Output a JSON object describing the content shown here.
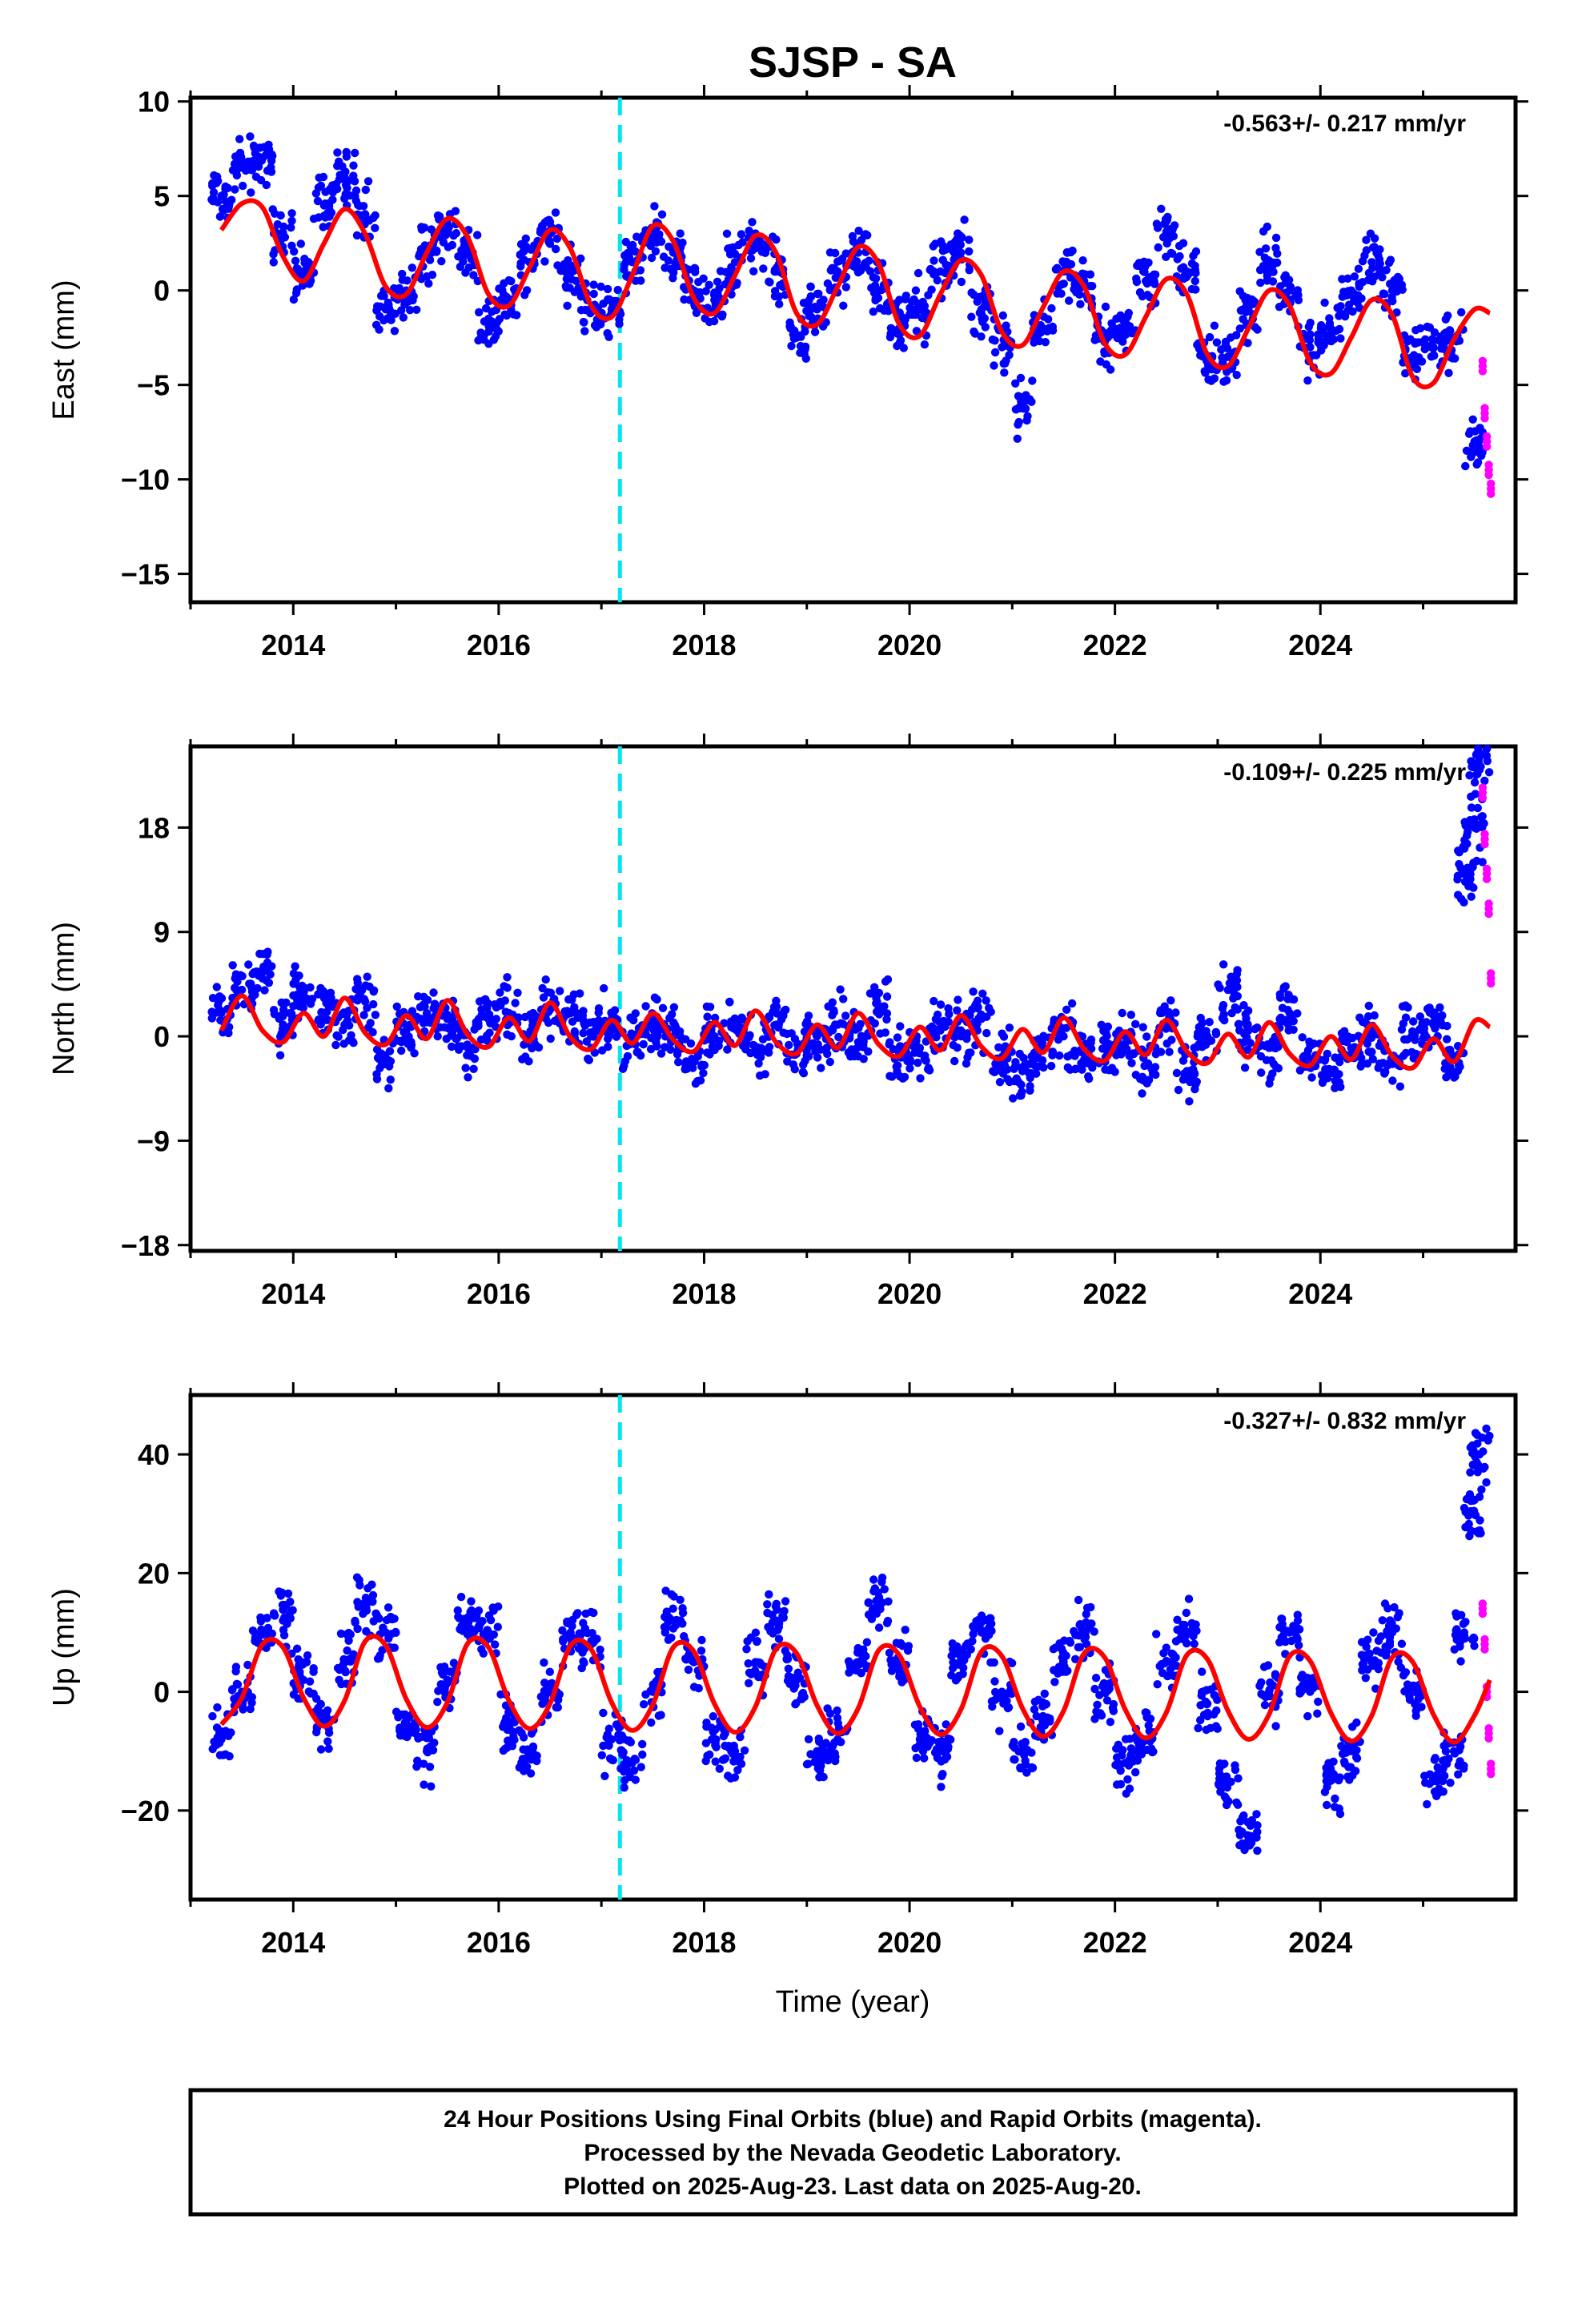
{
  "title": "SJSP - SA",
  "xlabel": "Time (year)",
  "footer": {
    "lines": [
      "24 Hour Positions Using Final Orbits (blue) and Rapid Orbits (magenta).",
      "Processed by the Nevada Geodetic Laboratory.",
      "Plotted on 2025-Aug-23. Last data on 2025-Aug-20."
    ]
  },
  "colors": {
    "final_orbits": "#0000ff",
    "rapid_orbits": "#ff00ff",
    "model_fit": "#ff0000",
    "event_line": "#00e5ee",
    "frame": "#000000"
  },
  "chart_data": [
    {
      "type": "scatter",
      "name": "east",
      "ylabel": "East (mm)",
      "rate_label": "-0.563+/- 0.217 mm/yr",
      "xlim": [
        2013.0,
        2025.9
      ],
      "ylim": [
        -16.5,
        10.2
      ],
      "xticks": [
        2014,
        2016,
        2018,
        2020,
        2022,
        2024
      ],
      "yticks": [
        10,
        5,
        0,
        -5,
        -10,
        -15
      ],
      "ytick_labels": [
        "10",
        "5",
        "0",
        "−5",
        "−10",
        "−15"
      ],
      "event_line_x": 2017.18,
      "grid": false,
      "series": [
        {
          "name": "final",
          "x": [
            2013.3,
            2013.5,
            2013.7,
            2013.9,
            2014.1,
            2014.3,
            2014.5,
            2014.7,
            2014.9,
            2015.1,
            2015.3,
            2015.5,
            2015.7,
            2015.9,
            2016.1,
            2016.3,
            2016.5,
            2016.7,
            2016.9,
            2017.1,
            2017.3,
            2017.5,
            2017.7,
            2017.9,
            2018.1,
            2018.3,
            2018.5,
            2018.7,
            2018.9,
            2019.1,
            2019.3,
            2019.5,
            2019.7,
            2019.9,
            2020.1,
            2020.3,
            2020.5,
            2020.7,
            2020.9,
            2021.1,
            2021.3,
            2021.5,
            2021.7,
            2021.9,
            2022.1,
            2022.3,
            2022.5,
            2022.7,
            2022.9,
            2023.1,
            2023.3,
            2023.5,
            2023.7,
            2023.9,
            2024.1,
            2024.3,
            2024.5,
            2024.7,
            2024.9,
            2025.1,
            2025.3,
            2025.5
          ],
          "y": [
            5.0,
            6.5,
            7.0,
            3.0,
            1.0,
            4.5,
            6.0,
            4.0,
            -1.0,
            0.0,
            2.0,
            3.5,
            2.0,
            -1.5,
            -0.5,
            1.5,
            3.0,
            1.0,
            -1.0,
            -1.0,
            1.5,
            3.0,
            2.0,
            0.0,
            -0.5,
            1.5,
            2.5,
            1.0,
            -2.5,
            -1.0,
            1.0,
            2.0,
            0.0,
            -2.0,
            -1.0,
            1.0,
            2.0,
            -1.0,
            -3.0,
            -6.0,
            -2.0,
            1.0,
            0.5,
            -2.5,
            -2.0,
            0.5,
            3.0,
            1.0,
            -3.5,
            -3.5,
            -1.0,
            1.5,
            0.0,
            -3.0,
            -2.0,
            0.0,
            1.5,
            0.0,
            -3.5,
            -3.0,
            -2.5,
            -8.0
          ]
        },
        {
          "name": "rapid",
          "x": [
            2025.58,
            2025.6,
            2025.62,
            2025.64,
            2025.66
          ],
          "y": [
            -4.0,
            -6.5,
            -8.0,
            -9.5,
            -10.5
          ]
        },
        {
          "name": "fit",
          "x": [
            2013.3,
            2013.5,
            2013.7,
            2013.9,
            2014.1,
            2014.3,
            2014.5,
            2014.7,
            2014.9,
            2015.1,
            2015.3,
            2015.5,
            2015.7,
            2015.9,
            2016.1,
            2016.3,
            2016.5,
            2016.7,
            2016.9,
            2017.1,
            2017.3,
            2017.5,
            2017.7,
            2017.9,
            2018.1,
            2018.3,
            2018.5,
            2018.7,
            2018.9,
            2019.1,
            2019.3,
            2019.5,
            2019.7,
            2019.9,
            2020.1,
            2020.3,
            2020.5,
            2020.7,
            2020.9,
            2021.1,
            2021.3,
            2021.5,
            2021.7,
            2021.9,
            2022.1,
            2022.3,
            2022.5,
            2022.7,
            2022.9,
            2023.1,
            2023.3,
            2023.5,
            2023.7,
            2023.9,
            2024.1,
            2024.3,
            2024.5,
            2024.7,
            2024.9,
            2025.1,
            2025.3,
            2025.5,
            2025.65
          ],
          "y": [
            3.2,
            4.6,
            4.4,
            1.8,
            0.5,
            2.5,
            4.3,
            3.0,
            0.2,
            -0.2,
            2.0,
            3.8,
            2.8,
            -0.2,
            -0.8,
            1.2,
            3.2,
            2.2,
            -0.8,
            -1.4,
            0.8,
            3.4,
            2.6,
            -0.4,
            -1.2,
            0.8,
            2.9,
            2.0,
            -1.2,
            -1.8,
            0.2,
            2.3,
            1.4,
            -1.8,
            -2.4,
            -0.2,
            1.6,
            0.8,
            -2.2,
            -2.9,
            -0.9,
            1.0,
            0.2,
            -2.8,
            -3.4,
            -1.4,
            0.6,
            -0.2,
            -3.4,
            -4.0,
            -2.0,
            0.0,
            -0.8,
            -3.8,
            -4.4,
            -2.5,
            -0.5,
            -1.3,
            -4.6,
            -4.9,
            -2.6,
            -1.0,
            -1.2
          ]
        }
      ]
    },
    {
      "type": "scatter",
      "name": "north",
      "ylabel": "North (mm)",
      "rate_label": "-0.109+/- 0.225 mm/yr",
      "xlim": [
        2013.0,
        2025.9
      ],
      "ylim": [
        -18.5,
        25.0
      ],
      "xticks": [
        2014,
        2016,
        2018,
        2020,
        2022,
        2024
      ],
      "yticks": [
        18,
        9,
        0,
        -9,
        -18
      ],
      "ytick_labels": [
        "18",
        "9",
        "0",
        "−9",
        "−18"
      ],
      "event_line_x": 2017.18,
      "grid": false,
      "series": [
        {
          "name": "final",
          "x": [
            2013.3,
            2013.5,
            2013.7,
            2013.9,
            2014.1,
            2014.3,
            2014.5,
            2014.7,
            2014.9,
            2015.1,
            2015.3,
            2015.5,
            2015.7,
            2015.9,
            2016.1,
            2016.3,
            2016.5,
            2016.7,
            2016.9,
            2017.1,
            2017.3,
            2017.5,
            2017.7,
            2017.9,
            2018.1,
            2018.3,
            2018.5,
            2018.7,
            2018.9,
            2019.1,
            2019.3,
            2019.5,
            2019.7,
            2019.9,
            2020.1,
            2020.3,
            2020.5,
            2020.7,
            2020.9,
            2021.1,
            2021.3,
            2021.5,
            2021.7,
            2021.9,
            2022.1,
            2022.3,
            2022.5,
            2022.7,
            2022.9,
            2023.1,
            2023.3,
            2023.5,
            2023.7,
            2023.9,
            2024.1,
            2024.3,
            2024.5,
            2024.7,
            2024.9,
            2025.1,
            2025.3,
            2025.4,
            2025.5,
            2025.55
          ],
          "y": [
            2.0,
            4.0,
            5.0,
            1.0,
            3.5,
            2.0,
            1.0,
            3.0,
            -2.0,
            0.5,
            2.0,
            1.5,
            -1.0,
            1.5,
            2.0,
            0.0,
            2.5,
            2.0,
            0.0,
            1.0,
            -0.5,
            1.0,
            0.0,
            -2.0,
            0.0,
            1.0,
            -1.0,
            1.0,
            -1.5,
            0.0,
            1.0,
            -0.5,
            2.5,
            -1.5,
            -1.0,
            0.5,
            0.0,
            1.5,
            -2.0,
            -3.0,
            -1.0,
            0.0,
            -2.0,
            -1.0,
            0.0,
            -2.5,
            1.0,
            -3.0,
            0.0,
            4.0,
            0.5,
            -1.0,
            2.0,
            -2.0,
            -3.0,
            -1.0,
            0.0,
            -2.0,
            0.0,
            1.0,
            -2.0,
            14.0,
            18.0,
            23.0
          ]
        },
        {
          "name": "rapid",
          "x": [
            2025.58,
            2025.6,
            2025.62,
            2025.64,
            2025.66
          ],
          "y": [
            21.0,
            17.0,
            14.0,
            11.0,
            5.0
          ]
        },
        {
          "name": "fit",
          "x": [
            2013.3,
            2013.5,
            2013.7,
            2013.9,
            2014.1,
            2014.3,
            2014.5,
            2014.7,
            2014.9,
            2015.1,
            2015.3,
            2015.5,
            2015.7,
            2015.9,
            2016.1,
            2016.3,
            2016.5,
            2016.7,
            2016.9,
            2017.1,
            2017.3,
            2017.5,
            2017.7,
            2017.9,
            2018.1,
            2018.3,
            2018.5,
            2018.7,
            2018.9,
            2019.1,
            2019.3,
            2019.5,
            2019.7,
            2019.9,
            2020.1,
            2020.3,
            2020.5,
            2020.7,
            2020.9,
            2021.1,
            2021.3,
            2021.5,
            2021.7,
            2021.9,
            2022.1,
            2022.3,
            2022.5,
            2022.7,
            2022.9,
            2023.1,
            2023.3,
            2023.5,
            2023.7,
            2023.9,
            2024.1,
            2024.3,
            2024.5,
            2024.7,
            2024.9,
            2025.1,
            2025.3,
            2025.5,
            2025.65
          ],
          "y": [
            0.5,
            3.5,
            0.5,
            -0.5,
            2.0,
            0.0,
            3.3,
            0.3,
            -0.7,
            1.8,
            -0.2,
            3.1,
            0.1,
            -0.9,
            1.6,
            -0.4,
            2.9,
            -0.1,
            -1.1,
            1.4,
            -0.6,
            2.0,
            -0.3,
            -1.3,
            1.2,
            -0.8,
            2.2,
            -0.5,
            -1.5,
            1.0,
            -1.0,
            2.0,
            -0.7,
            -1.7,
            0.8,
            -1.2,
            1.8,
            -0.9,
            -1.9,
            0.6,
            -1.4,
            1.6,
            -1.1,
            -2.1,
            0.4,
            -1.6,
            1.4,
            -1.3,
            -2.3,
            0.2,
            -1.8,
            1.2,
            -1.5,
            -2.5,
            0.0,
            -2.0,
            1.0,
            -1.7,
            -2.7,
            -0.2,
            -2.2,
            1.3,
            0.8
          ]
        }
      ]
    },
    {
      "type": "scatter",
      "name": "up",
      "ylabel": "Up (mm)",
      "rate_label": "-0.327+/- 0.832 mm/yr",
      "xlim": [
        2013.0,
        2025.9
      ],
      "ylim": [
        -35.0,
        50.0
      ],
      "xticks": [
        2014,
        2016,
        2018,
        2020,
        2022,
        2024
      ],
      "yticks": [
        40,
        20,
        0,
        -20
      ],
      "ytick_labels": [
        "40",
        "20",
        "0",
        "−20"
      ],
      "event_line_x": 2017.18,
      "grid": false,
      "series": [
        {
          "name": "final",
          "x": [
            2013.3,
            2013.5,
            2013.7,
            2013.9,
            2014.1,
            2014.3,
            2014.5,
            2014.7,
            2014.9,
            2015.1,
            2015.3,
            2015.5,
            2015.7,
            2015.9,
            2016.1,
            2016.3,
            2016.5,
            2016.7,
            2016.9,
            2017.1,
            2017.3,
            2017.5,
            2017.7,
            2017.9,
            2018.1,
            2018.3,
            2018.5,
            2018.7,
            2018.9,
            2019.1,
            2019.3,
            2019.5,
            2019.7,
            2019.9,
            2020.1,
            2020.3,
            2020.5,
            2020.7,
            2020.9,
            2021.1,
            2021.3,
            2021.5,
            2021.7,
            2021.9,
            2022.1,
            2022.3,
            2022.5,
            2022.7,
            2022.9,
            2023.1,
            2023.3,
            2023.5,
            2023.7,
            2023.9,
            2024.1,
            2024.3,
            2024.5,
            2024.7,
            2024.9,
            2025.1,
            2025.3,
            2025.4,
            2025.5,
            2025.55
          ],
          "y": [
            -8.0,
            0.0,
            10.0,
            12.0,
            2.0,
            -5.0,
            5.0,
            15.0,
            10.0,
            -5.0,
            -10.0,
            2.0,
            12.0,
            10.0,
            -5.0,
            -10.0,
            0.0,
            10.0,
            8.0,
            -8.0,
            -12.0,
            0.0,
            12.0,
            5.0,
            -8.0,
            -10.0,
            5.0,
            12.0,
            2.0,
            -10.0,
            -8.0,
            5.0,
            15.0,
            5.0,
            -8.0,
            -10.0,
            5.0,
            10.0,
            0.0,
            -10.0,
            -5.0,
            5.0,
            10.0,
            0.0,
            -12.0,
            -8.0,
            5.0,
            10.0,
            -2.0,
            -15.0,
            -25.0,
            0.0,
            10.0,
            0.0,
            -15.0,
            -10.0,
            5.0,
            10.0,
            0.0,
            -15.0,
            -10.0,
            10.0,
            30.0,
            40.0
          ]
        },
        {
          "name": "rapid",
          "x": [
            2025.58,
            2025.6,
            2025.62,
            2025.64,
            2025.66
          ],
          "y": [
            14.0,
            8.0,
            0.0,
            -7.0,
            -13.0
          ]
        },
        {
          "name": "fit",
          "x": [
            2013.3,
            2013.5,
            2013.7,
            2013.9,
            2014.1,
            2014.3,
            2014.5,
            2014.7,
            2014.9,
            2015.1,
            2015.3,
            2015.5,
            2015.7,
            2015.9,
            2016.1,
            2016.3,
            2016.5,
            2016.7,
            2016.9,
            2017.1,
            2017.3,
            2017.5,
            2017.7,
            2017.9,
            2018.1,
            2018.3,
            2018.5,
            2018.7,
            2018.9,
            2019.1,
            2019.3,
            2019.5,
            2019.7,
            2019.9,
            2020.1,
            2020.3,
            2020.5,
            2020.7,
            2020.9,
            2021.1,
            2021.3,
            2021.5,
            2021.7,
            2021.9,
            2022.1,
            2022.3,
            2022.5,
            2022.7,
            2022.9,
            2023.1,
            2023.3,
            2023.5,
            2023.7,
            2023.9,
            2024.1,
            2024.3,
            2024.5,
            2024.7,
            2024.9,
            2025.1,
            2025.3,
            2025.5,
            2025.65
          ],
          "y": [
            -5.5,
            -1.0,
            8.0,
            7.5,
            -1.0,
            -5.8,
            -1.5,
            8.5,
            7.8,
            -1.2,
            -6.0,
            -1.8,
            8.2,
            7.5,
            -1.5,
            -6.2,
            -2.0,
            7.8,
            7.2,
            -1.8,
            -6.5,
            -2.2,
            7.5,
            6.8,
            -2.0,
            -6.8,
            -2.5,
            7.2,
            6.5,
            -2.3,
            -7.0,
            -2.8,
            7.0,
            6.2,
            -2.5,
            -7.2,
            -3.0,
            6.8,
            6.0,
            -2.8,
            -7.5,
            -3.2,
            6.5,
            5.8,
            -3.0,
            -7.8,
            -3.5,
            6.2,
            5.5,
            -3.2,
            -8.0,
            -3.8,
            6.0,
            5.2,
            -3.5,
            -8.3,
            -4.0,
            5.8,
            5.0,
            -3.8,
            -8.5,
            -4.0,
            2.0
          ]
        }
      ]
    }
  ]
}
